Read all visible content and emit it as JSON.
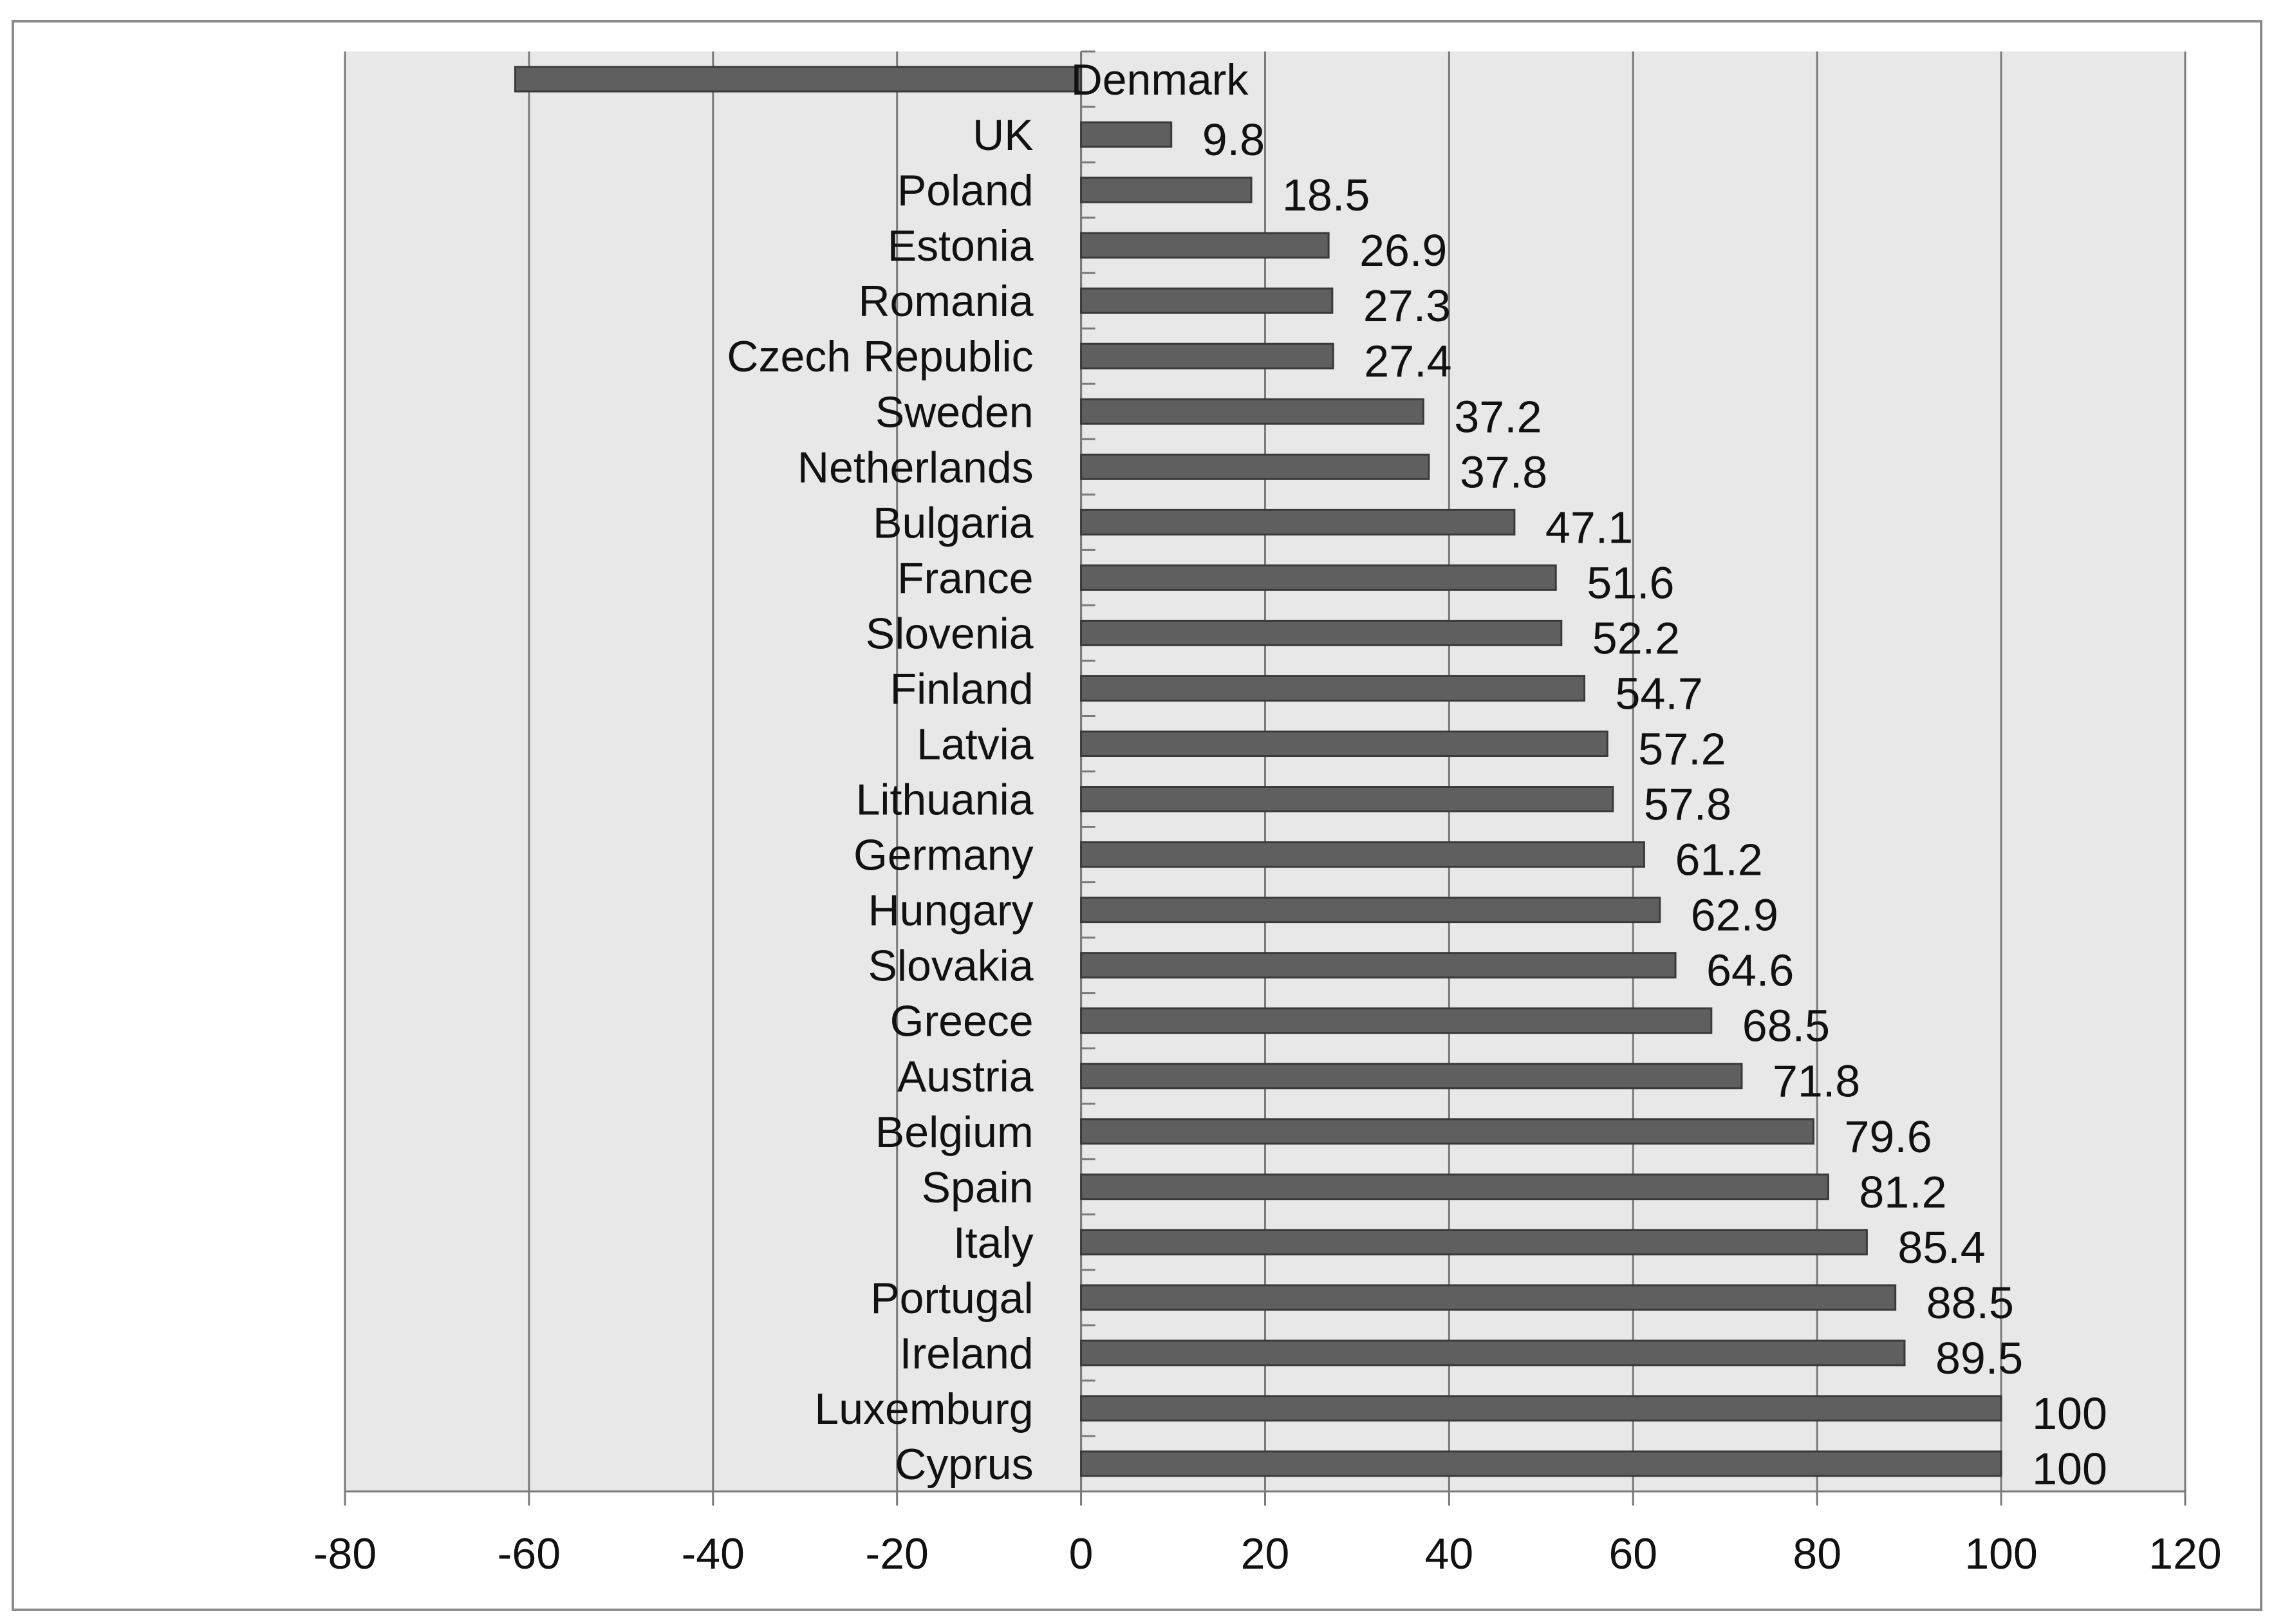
{
  "chart_data": {
    "type": "bar",
    "orientation": "horizontal",
    "categories": [
      "Denmark",
      "UK",
      "Poland",
      "Estonia",
      "Romania",
      "Czech Republic",
      "Sweden",
      "Netherlands",
      "Bulgaria",
      "France",
      "Slovenia",
      "Finland",
      "Latvia",
      "Lithuania",
      "Germany",
      "Hungary",
      "Slovakia",
      "Greece",
      "Austria",
      "Belgium",
      "Spain",
      "Italy",
      "Portugal",
      "Ireland",
      "Luxemburg",
      "Cyprus"
    ],
    "values": [
      -61.5,
      9.8,
      18.5,
      26.9,
      27.3,
      27.4,
      37.2,
      37.8,
      47.1,
      51.6,
      52.2,
      54.7,
      57.2,
      57.8,
      61.2,
      62.9,
      64.6,
      68.5,
      71.8,
      79.6,
      81.2,
      85.4,
      88.5,
      89.5,
      100,
      100
    ],
    "data_labels": [
      "",
      "9.8",
      "18.5",
      "26.9",
      "27.3",
      "27.4",
      "37.2",
      "37.8",
      "47.1",
      "51.6",
      "52.2",
      "54.7",
      "57.2",
      "57.8",
      "61.2",
      "62.9",
      "64.6",
      "68.5",
      "71.8",
      "79.6",
      "81.2",
      "85.4",
      "88.5",
      "89.5",
      "100",
      "100"
    ],
    "xlim": [
      -80,
      120
    ],
    "x_ticks": [
      "-80",
      "-60",
      "-40",
      "-20",
      "0",
      "20",
      "40",
      "60",
      "80",
      "100",
      "120"
    ],
    "grid": true,
    "legend": "none",
    "colors": {
      "bar": "#5f5f5f",
      "bar_edge": "#3a3a3a",
      "plot_bg": "#e8e8e8",
      "grid": "#7a7a7a",
      "frame": "#8c8c8c"
    }
  }
}
